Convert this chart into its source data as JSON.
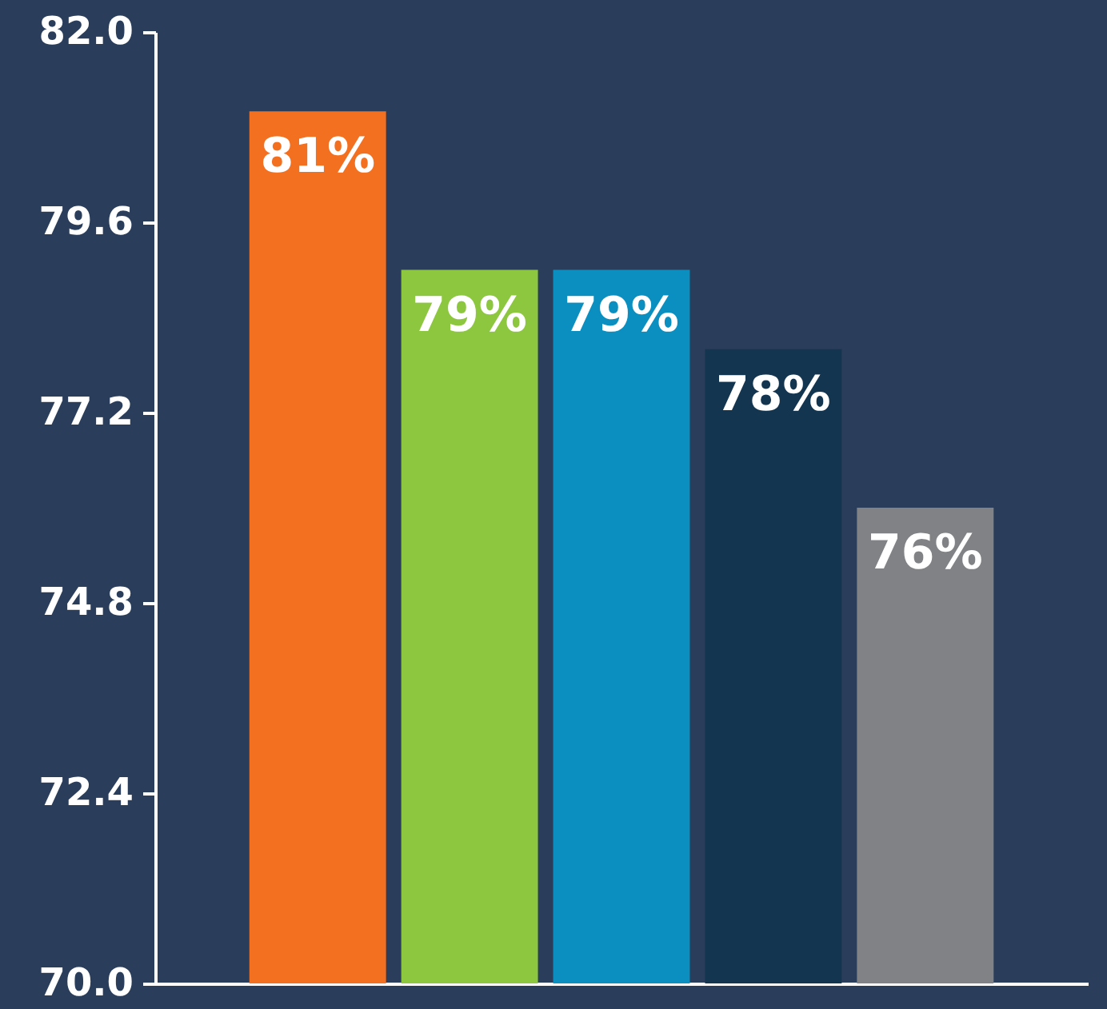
{
  "chart_data": {
    "type": "bar",
    "categories": [
      null,
      null,
      null,
      null,
      null
    ],
    "values": [
      81,
      79,
      79,
      78,
      76
    ],
    "colors": [
      "#f37021",
      "#8dc63f",
      "#0a8fc0",
      "#14354f",
      "#808285"
    ],
    "value_labels": [
      "81%",
      "79%",
      "79%",
      "78%",
      "76%"
    ],
    "ylim": [
      70,
      82
    ],
    "yticks": [
      {
        "value": 70,
        "label": "70.0"
      },
      72.4,
      74.8,
      77.2,
      79.6,
      {
        "value": 82,
        "label": "82.0"
      }
    ],
    "tick_labels": "y",
    "grid": false
  }
}
